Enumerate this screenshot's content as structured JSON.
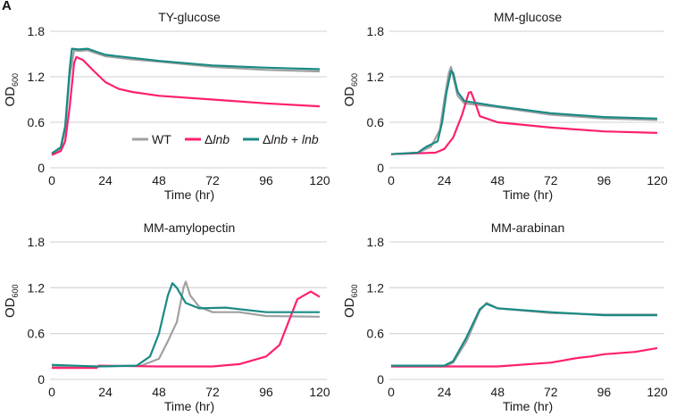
{
  "panel_label": "A",
  "colors": {
    "WT": "#a0a0a0",
    "lnb": "#ff1f6e",
    "comp": "#1a8a84",
    "grid": "#d9d9d9"
  },
  "legend": [
    {
      "key": "WT",
      "prefix": "WT",
      "italic": "",
      "suffix": "",
      "italic2": ""
    },
    {
      "key": "lnb",
      "prefix": "Δ",
      "italic": "lnb",
      "suffix": "",
      "italic2": ""
    },
    {
      "key": "comp",
      "prefix": "Δ",
      "italic": "lnb",
      "suffix": " + ",
      "italic2": "lnb"
    }
  ],
  "chart_data": [
    {
      "type": "line",
      "title": "TY-glucose",
      "xlabel": "Time (hr)",
      "ylabel": "OD",
      "ylabel_sub": "600",
      "xlim": [
        0,
        120
      ],
      "ylim": [
        0,
        1.8
      ],
      "xticks": [
        "0",
        "24",
        "48",
        "72",
        "96",
        "120"
      ],
      "yticks": [
        "0",
        "0.6",
        "1.2",
        "1.8"
      ],
      "grid": true,
      "legend": "bottom-right",
      "series": [
        {
          "name": "WT",
          "key": "WT",
          "x": [
            0,
            4,
            6,
            8,
            10,
            12,
            16,
            20,
            24,
            36,
            48,
            72,
            96,
            120
          ],
          "y": [
            0.18,
            0.25,
            0.5,
            1.2,
            1.55,
            1.54,
            1.55,
            1.51,
            1.47,
            1.43,
            1.4,
            1.33,
            1.29,
            1.27
          ]
        },
        {
          "name": "Δlnb",
          "key": "lnb",
          "x": [
            0,
            4,
            6,
            8,
            10,
            11,
            14,
            18,
            24,
            30,
            36,
            48,
            72,
            96,
            120
          ],
          "y": [
            0.17,
            0.22,
            0.35,
            0.8,
            1.38,
            1.46,
            1.42,
            1.3,
            1.13,
            1.04,
            1.0,
            0.95,
            0.9,
            0.85,
            0.81
          ]
        },
        {
          "name": "Δlnb + lnb",
          "key": "comp",
          "x": [
            0,
            4,
            6,
            8,
            9,
            12,
            16,
            20,
            24,
            36,
            48,
            72,
            96,
            120
          ],
          "y": [
            0.19,
            0.27,
            0.55,
            1.3,
            1.57,
            1.56,
            1.57,
            1.53,
            1.49,
            1.45,
            1.41,
            1.35,
            1.32,
            1.3
          ]
        }
      ]
    },
    {
      "type": "line",
      "title": "MM-glucose",
      "xlabel": "Time (hr)",
      "ylabel": "OD",
      "ylabel_sub": "600",
      "xlim": [
        0,
        120
      ],
      "ylim": [
        0,
        1.8
      ],
      "xticks": [
        "0",
        "24",
        "48",
        "72",
        "96",
        "120"
      ],
      "yticks": [
        "0",
        "0.6",
        "1.2",
        "1.8"
      ],
      "grid": true,
      "series": [
        {
          "name": "WT",
          "key": "WT",
          "x": [
            0,
            12,
            18,
            22,
            24,
            26,
            27,
            28,
            30,
            33,
            48,
            72,
            96,
            120
          ],
          "y": [
            0.18,
            0.2,
            0.28,
            0.5,
            0.9,
            1.25,
            1.33,
            1.2,
            0.95,
            0.85,
            0.8,
            0.7,
            0.65,
            0.63
          ]
        },
        {
          "name": "Δlnb",
          "key": "lnb",
          "x": [
            0,
            20,
            24,
            28,
            32,
            35,
            36,
            38,
            40,
            48,
            72,
            96,
            120
          ],
          "y": [
            0.18,
            0.2,
            0.25,
            0.4,
            0.7,
            0.99,
            1.0,
            0.85,
            0.68,
            0.6,
            0.53,
            0.48,
            0.46
          ]
        },
        {
          "name": "Δlnb + lnb",
          "key": "comp",
          "x": [
            0,
            12,
            16,
            21,
            23,
            25,
            27,
            28,
            30,
            33,
            48,
            72,
            96,
            120
          ],
          "y": [
            0.18,
            0.2,
            0.28,
            0.35,
            0.6,
            1.0,
            1.28,
            1.25,
            1.0,
            0.88,
            0.81,
            0.72,
            0.67,
            0.65
          ]
        }
      ]
    },
    {
      "type": "line",
      "title": "MM-amylopectin",
      "xlabel": "Time (hr)",
      "ylabel": "OD",
      "ylabel_sub": "600",
      "xlim": [
        0,
        120
      ],
      "ylim": [
        0,
        1.8
      ],
      "xticks": [
        "0",
        "24",
        "48",
        "72",
        "96",
        "120"
      ],
      "yticks": [
        "0",
        "0.6",
        "1.2",
        "1.8"
      ],
      "grid": true,
      "series": [
        {
          "name": "WT",
          "key": "WT",
          "x": [
            0,
            20,
            40,
            48,
            52,
            56,
            59,
            60,
            62,
            66,
            72,
            84,
            96,
            120
          ],
          "y": [
            0.17,
            0.17,
            0.18,
            0.27,
            0.5,
            0.75,
            1.2,
            1.28,
            1.1,
            0.95,
            0.88,
            0.88,
            0.83,
            0.82
          ]
        },
        {
          "name": "Δlnb",
          "key": "lnb",
          "x": [
            0,
            20,
            21,
            48,
            72,
            84,
            96,
            102,
            106,
            110,
            116,
            120
          ],
          "y": [
            0.15,
            0.15,
            0.18,
            0.17,
            0.17,
            0.2,
            0.3,
            0.45,
            0.75,
            1.05,
            1.15,
            1.08
          ]
        },
        {
          "name": "Δlnb + lnb",
          "key": "comp",
          "x": [
            0,
            20,
            38,
            44,
            48,
            52,
            54,
            56,
            60,
            66,
            78,
            96,
            120
          ],
          "y": [
            0.19,
            0.17,
            0.18,
            0.3,
            0.6,
            1.1,
            1.26,
            1.2,
            1.0,
            0.93,
            0.94,
            0.88,
            0.88
          ]
        }
      ]
    },
    {
      "type": "line",
      "title": "MM-arabinan",
      "xlabel": "Time (hr)",
      "ylabel": "OD",
      "ylabel_sub": "600",
      "xlim": [
        0,
        120
      ],
      "ylim": [
        0,
        1.8
      ],
      "xticks": [
        "0",
        "24",
        "48",
        "72",
        "96",
        "120"
      ],
      "yticks": [
        "0",
        "0.6",
        "1.2",
        "1.8"
      ],
      "grid": true,
      "series": [
        {
          "name": "WT",
          "key": "WT",
          "x": [
            0,
            24,
            28,
            34,
            40,
            43,
            48,
            72,
            96,
            120
          ],
          "y": [
            0.17,
            0.17,
            0.22,
            0.5,
            0.9,
            1.0,
            0.93,
            0.87,
            0.85,
            0.85
          ]
        },
        {
          "name": "Δlnb",
          "key": "lnb",
          "x": [
            0,
            48,
            72,
            84,
            90,
            96,
            110,
            120
          ],
          "y": [
            0.17,
            0.17,
            0.22,
            0.28,
            0.3,
            0.33,
            0.36,
            0.41
          ]
        },
        {
          "name": "Δlnb + lnb",
          "key": "comp",
          "x": [
            0,
            24,
            28,
            34,
            40,
            43,
            48,
            72,
            96,
            120
          ],
          "y": [
            0.18,
            0.18,
            0.24,
            0.55,
            0.92,
            0.99,
            0.93,
            0.88,
            0.84,
            0.84
          ]
        }
      ]
    }
  ]
}
